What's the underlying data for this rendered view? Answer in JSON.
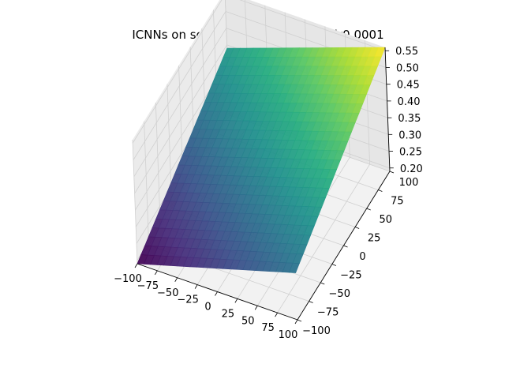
{
  "chart_data": {
    "type": "surface",
    "title": "ICNNs on schaffer2 at t = 10 with lr0.0001",
    "xlabel": "",
    "ylabel": "",
    "zlabel": "",
    "x_ticks": [
      "−100",
      "−75",
      "−50",
      "−25",
      "0",
      "25",
      "50",
      "75",
      "100"
    ],
    "y_ticks": [
      "−100",
      "−75",
      "−50",
      "−25",
      "0",
      "25",
      "50",
      "75",
      "100"
    ],
    "z_ticks": [
      "0.20",
      "0.25",
      "0.30",
      "0.35",
      "0.40",
      "0.45",
      "0.50",
      "0.55"
    ],
    "xlim": [
      -100,
      100
    ],
    "ylim": [
      -100,
      100
    ],
    "zlim": [
      0.19,
      0.56
    ],
    "grid": true,
    "colormap": "viridis",
    "surface_corners": [
      {
        "x": -100,
        "y": -100,
        "z": 0.19
      },
      {
        "x": 100,
        "y": -100,
        "z": 0.33
      },
      {
        "x": -100,
        "y": 100,
        "z": 0.39
      },
      {
        "x": 100,
        "y": 100,
        "z": 0.56
      }
    ]
  }
}
